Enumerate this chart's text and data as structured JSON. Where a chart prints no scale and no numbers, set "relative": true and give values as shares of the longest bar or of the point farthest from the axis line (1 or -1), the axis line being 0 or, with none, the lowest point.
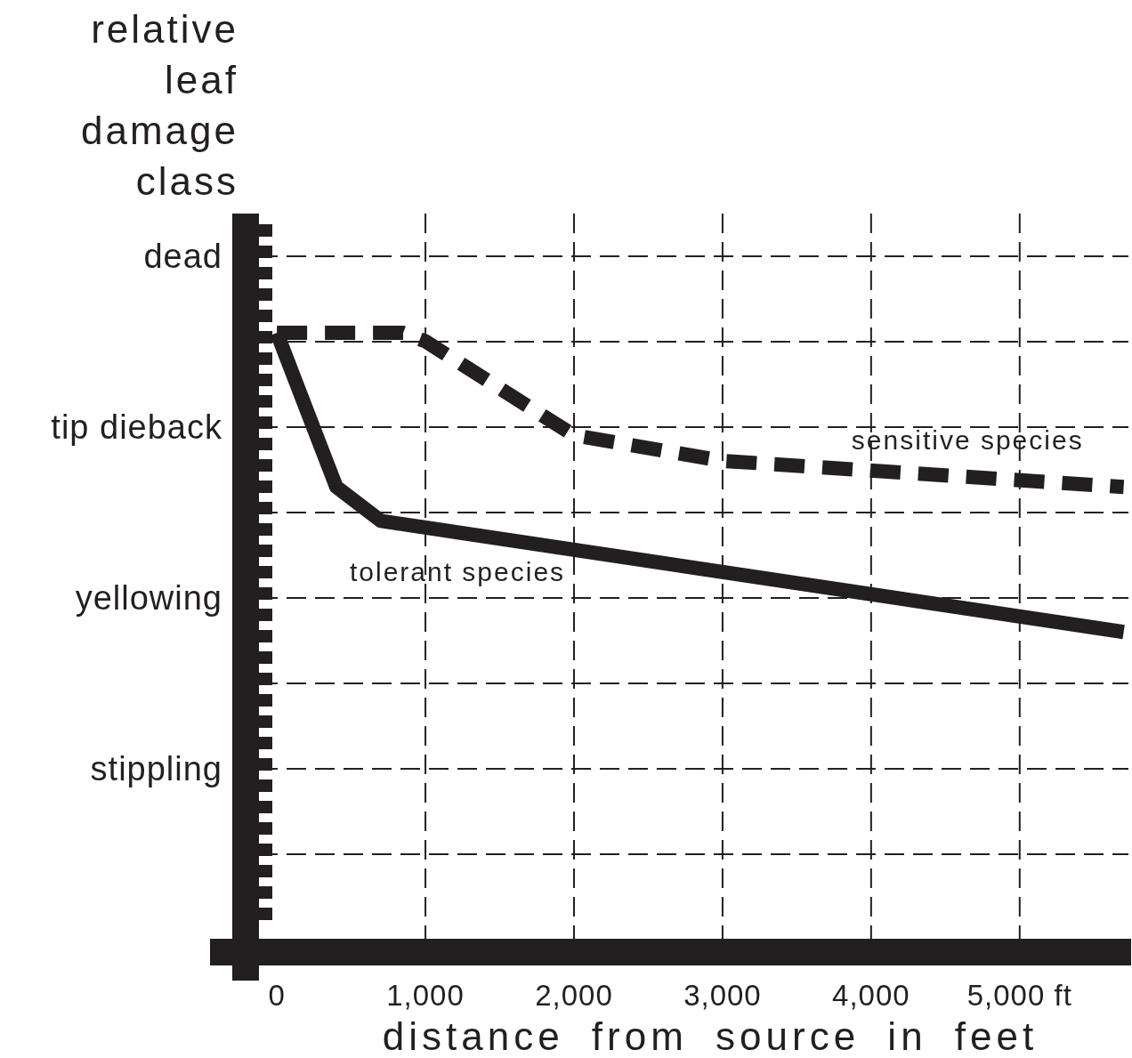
{
  "chart_data": {
    "type": "line",
    "relative": true,
    "xlabel": "distance from source in feet",
    "ylabel": "relative leaf damage class",
    "annotations": [
      "dead",
      "tip dieback",
      "yellowing",
      "stippling"
    ],
    "xlim": [
      -450,
      5750
    ],
    "xticks": [
      0,
      {
        "value": 1000,
        "label": "1,000"
      },
      {
        "value": 2000,
        "label": "2,000"
      },
      {
        "value": 3000,
        "label": "3,000"
      },
      {
        "value": 4000,
        "label": "4,000"
      },
      {
        "value": 5000,
        "label": "5,000 ft"
      }
    ],
    "grid": true,
    "legend": false,
    "marker": "none",
    "series": [
      {
        "name": "sensitive species",
        "color": "#231f20",
        "line_style": "dashed",
        "x": [
          0,
          850,
          1000,
          2000,
          3000,
          5700
        ],
        "values": [
          1,
          1,
          0.986,
          0.831,
          0.789,
          0.746
        ]
      },
      {
        "name": "tolerant species",
        "color": "#231f20",
        "line_style": "solid",
        "x": [
          0,
          400,
          700,
          5700
        ],
        "values": [
          1,
          0.746,
          0.69,
          0.507
        ]
      }
    ]
  }
}
